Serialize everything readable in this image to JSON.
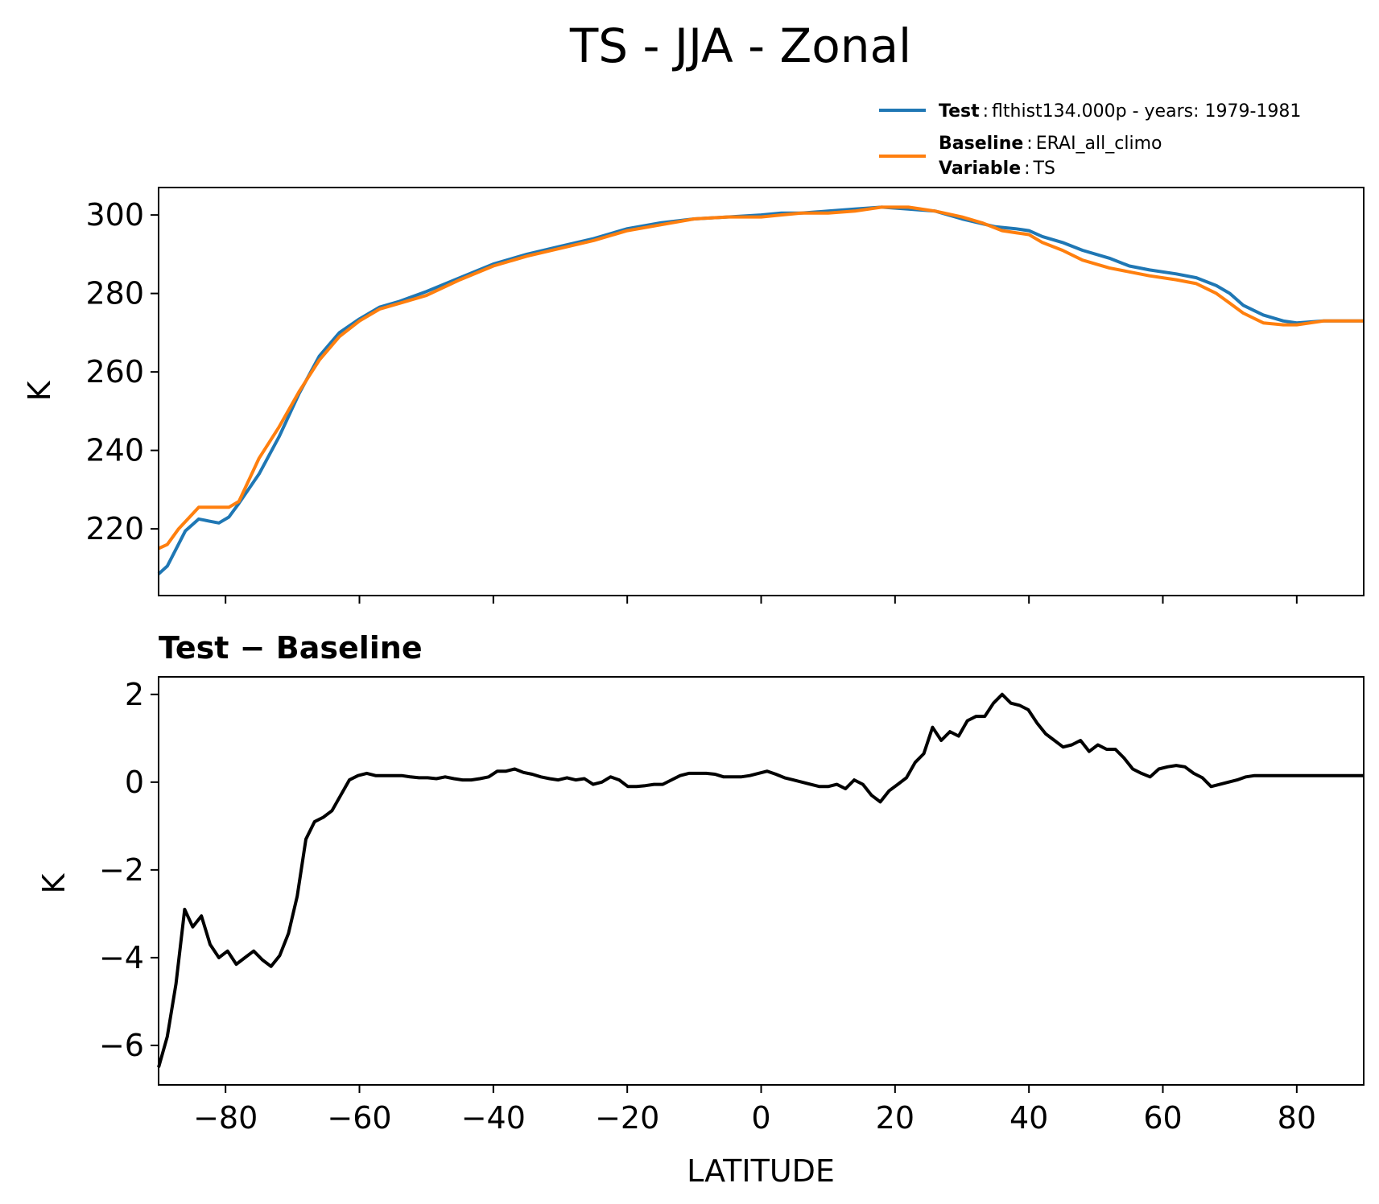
{
  "title": "TS - JJA - Zonal",
  "legend": {
    "test_key": "Test",
    "test_value": "flthist134.000p - years: 1979-1981",
    "baseline_key": "Baseline",
    "baseline_value": "ERAI_all_climo",
    "variable_key": "Variable",
    "variable_value": "TS",
    "sep": ":"
  },
  "colors": {
    "test": "#1f77b4",
    "baseline": "#ff7f0e",
    "diff": "#000000"
  },
  "chart_data": [
    {
      "type": "line",
      "panel": "top",
      "ylabel": "K",
      "xlim": [
        -90,
        90
      ],
      "ylim": [
        203,
        307
      ],
      "yticks": [
        220,
        240,
        260,
        280,
        300
      ],
      "ytick_labels": [
        "220",
        "240",
        "260",
        "280",
        "300"
      ],
      "xticks": [
        -80,
        -60,
        -40,
        -20,
        0,
        20,
        40,
        60,
        80
      ],
      "grid": false,
      "legend_position": "upper right, above plot",
      "series": [
        {
          "name": "Test",
          "color": "#1f77b4",
          "x": [
            -90,
            -88.7,
            -86,
            -84,
            -82.5,
            -81,
            -79.5,
            -78,
            -75,
            -72,
            -69,
            -66,
            -63,
            -60,
            -57,
            -54,
            -50,
            -45,
            -40,
            -35,
            -30,
            -25,
            -20,
            -15,
            -10,
            -5,
            0,
            3,
            6,
            10,
            14,
            18,
            22,
            26,
            30,
            35,
            38,
            40,
            42,
            45,
            48,
            52,
            55,
            58,
            62,
            65,
            68,
            70,
            72,
            75,
            78,
            80,
            84,
            88,
            90
          ],
          "values": [
            208.5,
            210.5,
            219.5,
            222.5,
            222,
            221.5,
            223,
            226.5,
            234,
            243.5,
            254.5,
            264,
            270,
            273.5,
            276.5,
            278,
            280.5,
            284,
            287.5,
            290,
            292,
            294,
            296.5,
            298,
            299,
            299.5,
            300,
            300.5,
            300.5,
            301,
            301.5,
            302,
            301.5,
            301,
            299,
            297,
            296.5,
            296,
            294.5,
            293,
            291,
            289,
            287,
            286,
            285,
            284,
            282,
            280,
            277,
            274.5,
            273,
            272.5,
            273,
            273,
            273
          ]
        },
        {
          "name": "Baseline",
          "color": "#ff7f0e",
          "x": [
            -90,
            -88.7,
            -87,
            -84,
            -81,
            -79.5,
            -78,
            -75,
            -72,
            -69,
            -66,
            -63,
            -60,
            -57,
            -54,
            -50,
            -45,
            -40,
            -35,
            -30,
            -25,
            -20,
            -15,
            -10,
            -5,
            0,
            3,
            6,
            10,
            14,
            18,
            22,
            26,
            30,
            33,
            36,
            38,
            40,
            42,
            45,
            48,
            52,
            55,
            58,
            62,
            65,
            68,
            70,
            72,
            75,
            78,
            80,
            84,
            88,
            90
          ],
          "values": [
            215,
            216,
            220,
            225.5,
            225.5,
            225.5,
            227,
            238,
            246,
            255,
            263,
            269,
            273,
            276,
            277.5,
            279.5,
            283.5,
            287,
            289.5,
            291.5,
            293.5,
            296,
            297.5,
            299,
            299.5,
            299.5,
            300,
            300.5,
            300.5,
            301,
            302,
            302,
            301,
            299.5,
            298,
            296,
            295.5,
            295,
            293,
            291,
            288.5,
            286.5,
            285.5,
            284.5,
            283.5,
            282.5,
            280,
            277.5,
            275,
            272.5,
            272,
            272,
            273,
            273,
            273
          ]
        }
      ]
    },
    {
      "type": "line",
      "panel": "bottom",
      "title": "Test − Baseline",
      "xlabel": "LATITUDE",
      "ylabel": "K",
      "xlim": [
        -90,
        90
      ],
      "ylim": [
        -6.9,
        2.4
      ],
      "yticks": [
        -6,
        -4,
        -2,
        0,
        2
      ],
      "ytick_labels": [
        "−6",
        "−4",
        "−2",
        "0",
        "2"
      ],
      "xticks": [
        -80,
        -60,
        -40,
        -20,
        0,
        20,
        40,
        60,
        80
      ],
      "xtick_labels": [
        "−80",
        "−60",
        "−40",
        "−20",
        "0",
        "20",
        "40",
        "60",
        "80"
      ],
      "grid": false,
      "series": [
        {
          "color": "#000000",
          "x": [
            -90,
            -88.7,
            -87.4,
            -86.1,
            -84.9,
            -83.6,
            -82.3,
            -81,
            -79.7,
            -78.4,
            -77.1,
            -75.8,
            -74.5,
            -73.2,
            -71.9,
            -70.6,
            -69.3,
            -68,
            -66.7,
            -65.4,
            -64.1,
            -62.8,
            -61.5,
            -60.2,
            -58.9,
            -57.6,
            -56.3,
            -55,
            -53.7,
            -52.4,
            -51.1,
            -49.8,
            -48.5,
            -47.2,
            -45.9,
            -44.6,
            -43.3,
            -42,
            -40.7,
            -39.4,
            -38.1,
            -36.8,
            -35.5,
            -34.2,
            -32.9,
            -31.6,
            -30.3,
            -29,
            -27.7,
            -26.4,
            -25.1,
            -23.8,
            -22.5,
            -21.2,
            -19.9,
            -18.6,
            -17.3,
            -16,
            -14.7,
            -13.4,
            -12.1,
            -10.8,
            -9.5,
            -8.2,
            -6.9,
            -5.6,
            -4.3,
            -3,
            -1.7,
            -0.4,
            0.9,
            2.2,
            3.5,
            4.8,
            6.1,
            7.4,
            8.7,
            10,
            11.3,
            12.6,
            13.9,
            15.2,
            16.5,
            17.8,
            19.1,
            20.4,
            21.7,
            23,
            24.3,
            25.6,
            26.9,
            28.2,
            29.5,
            30.8,
            32.1,
            33.4,
            34.7,
            36,
            37.3,
            38.6,
            39.9,
            41.2,
            42.5,
            43.8,
            45.1,
            46.4,
            47.7,
            49,
            50.3,
            51.6,
            52.9,
            54.2,
            55.5,
            56.8,
            58.1,
            59.4,
            60.7,
            62,
            63.3,
            64.6,
            65.9,
            67.2,
            68.5,
            69.8,
            71.1,
            72.4,
            73.7,
            75,
            76.3,
            77.6,
            78.9,
            80.2,
            81.5,
            82.8,
            84.1,
            85.4,
            86.7,
            88,
            89.3,
            90
          ],
          "values": [
            -6.5,
            -5.8,
            -4.6,
            -2.9,
            -3.3,
            -3.05,
            -3.7,
            -4.0,
            -3.85,
            -4.15,
            -4.0,
            -3.85,
            -4.05,
            -4.2,
            -3.95,
            -3.45,
            -2.6,
            -1.3,
            -0.9,
            -0.8,
            -0.65,
            -0.3,
            0.05,
            0.15,
            0.2,
            0.15,
            0.15,
            0.15,
            0.15,
            0.12,
            0.1,
            0.1,
            0.08,
            0.12,
            0.08,
            0.05,
            0.05,
            0.08,
            0.12,
            0.25,
            0.25,
            0.3,
            0.22,
            0.18,
            0.12,
            0.08,
            0.05,
            0.1,
            0.05,
            0.08,
            -0.05,
            0.0,
            0.12,
            0.05,
            -0.1,
            -0.1,
            -0.08,
            -0.05,
            -0.05,
            0.05,
            0.15,
            0.2,
            0.2,
            0.2,
            0.18,
            0.12,
            0.12,
            0.12,
            0.15,
            0.2,
            0.25,
            0.18,
            0.1,
            0.05,
            0.0,
            -0.05,
            -0.1,
            -0.1,
            -0.05,
            -0.15,
            0.05,
            -0.05,
            -0.3,
            -0.45,
            -0.2,
            -0.05,
            0.1,
            0.45,
            0.65,
            1.25,
            0.95,
            1.15,
            1.05,
            1.4,
            1.5,
            1.5,
            1.8,
            2.0,
            1.8,
            1.75,
            1.65,
            1.35,
            1.1,
            0.95,
            0.8,
            0.85,
            0.95,
            0.7,
            0.85,
            0.75,
            0.75,
            0.55,
            0.3,
            0.2,
            0.12,
            0.3,
            0.35,
            0.38,
            0.35,
            0.2,
            0.1,
            -0.1,
            -0.05,
            0.0,
            0.05,
            0.12,
            0.15,
            0.15,
            0.15,
            0.15,
            0.15,
            0.15,
            0.15,
            0.15,
            0.15,
            0.15,
            0.15,
            0.15,
            0.15,
            0.15
          ]
        }
      ]
    }
  ]
}
